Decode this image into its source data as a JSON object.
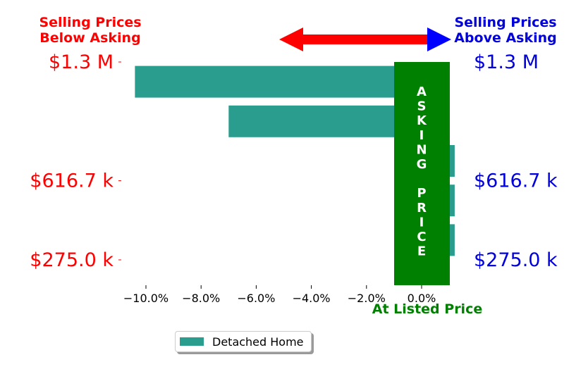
{
  "header": {
    "left_line1": "Selling Prices",
    "left_line2": "Below Asking",
    "right_line1": "Selling Prices",
    "right_line2": "Above Asking"
  },
  "asking_band": {
    "letters": [
      "A",
      "S",
      "K",
      "I",
      "N",
      "G",
      "",
      "P",
      "R",
      "I",
      "C",
      "E"
    ],
    "bottom_label": "At Listed Price",
    "color": "#008000"
  },
  "colors": {
    "left_text": "#ff0000",
    "right_text": "#0000dd",
    "bar": "#2a9d8f",
    "arrow_left": "#ff0000",
    "arrow_right": "#0000ff"
  },
  "chart_data": {
    "type": "bar",
    "orientation": "horizontal",
    "series": [
      {
        "name": "Detached Home",
        "values": [
          -10.4,
          -7.0,
          1.2,
          1.2,
          1.2
        ]
      }
    ],
    "rows": [
      "row-1",
      "row-2",
      "row-3",
      "row-4",
      "row-5"
    ],
    "xlim": [
      -11.0,
      1.2
    ],
    "xticks": [
      -10.0,
      -8.0,
      -6.0,
      -4.0,
      -2.0,
      0.0
    ],
    "xtick_labels": [
      "−10.0%",
      "−8.0%",
      "−6.0%",
      "−4.0%",
      "−2.0%",
      "0.0%"
    ],
    "y_tick_labels": [
      {
        "label": "$1.3 M",
        "row": 0
      },
      {
        "label": "$616.7 k",
        "row": 3
      },
      {
        "label": "$275.0 k",
        "row": 5
      }
    ],
    "legend": {
      "placement": "bottom-left",
      "entries": [
        "Detached Home"
      ]
    }
  }
}
